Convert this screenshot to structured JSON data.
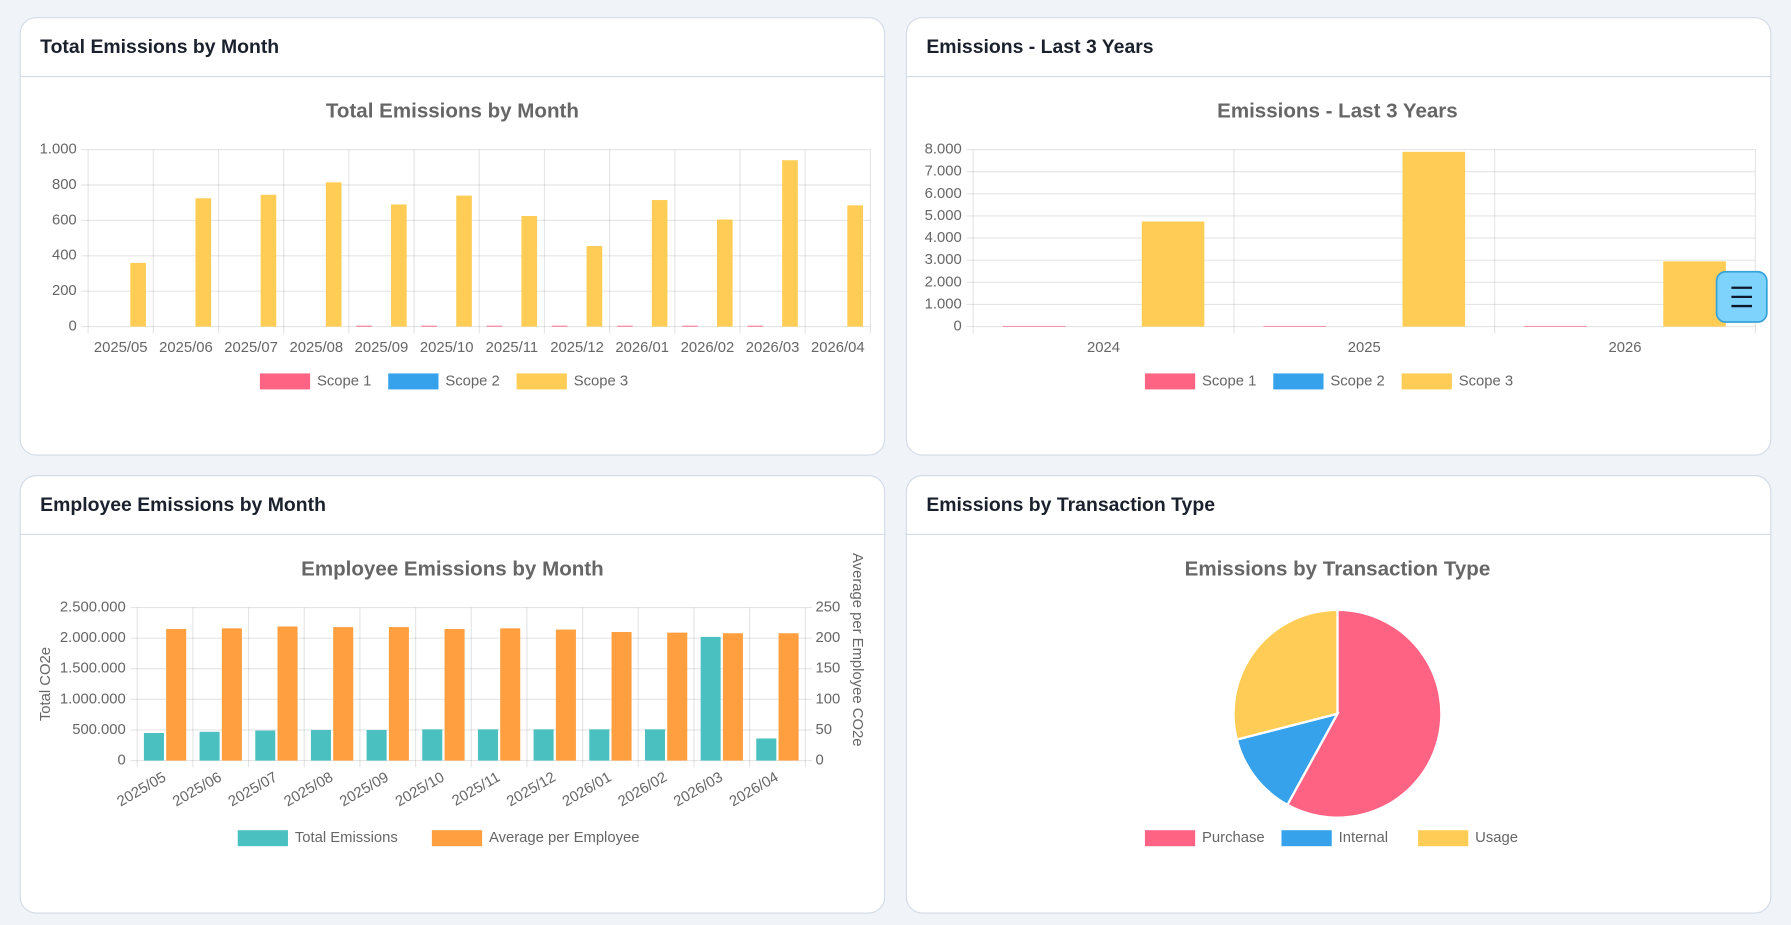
{
  "chart_data": [
    {
      "type": "bar",
      "title": "Total Emissions by Month",
      "categories": [
        "2025/05",
        "2025/06",
        "2025/07",
        "2025/08",
        "2025/09",
        "2025/10",
        "2025/11",
        "2025/12",
        "2026/01",
        "2026/02",
        "2026/03",
        "2026/04"
      ],
      "series": [
        {
          "name": "Scope 1",
          "color": "#ff6384",
          "values": [
            0,
            0,
            0,
            0,
            5,
            5,
            5,
            5,
            5,
            5,
            5,
            0
          ]
        },
        {
          "name": "Scope 2",
          "color": "#36a2eb",
          "values": [
            0,
            0,
            0,
            0,
            0,
            0,
            0,
            0,
            0,
            0,
            0,
            0
          ]
        },
        {
          "name": "Scope 3",
          "color": "#ffcd56",
          "values": [
            360,
            725,
            745,
            815,
            690,
            740,
            625,
            455,
            715,
            605,
            940,
            685
          ]
        }
      ],
      "ylim": [
        0,
        1000
      ],
      "yticks": [
        0,
        200,
        400,
        600,
        800,
        {
          "value": 1000,
          "label": "1.000"
        }
      ],
      "grid": true,
      "legend": "bottom"
    },
    {
      "type": "bar",
      "title": "Emissions - Last 3 Years",
      "categories": [
        "2024",
        "2025",
        "2026"
      ],
      "series": [
        {
          "name": "Scope 1",
          "color": "#ff6384",
          "values": [
            30,
            30,
            30
          ]
        },
        {
          "name": "Scope 2",
          "color": "#36a2eb",
          "values": [
            0,
            0,
            0
          ]
        },
        {
          "name": "Scope 3",
          "color": "#ffcd56",
          "values": [
            4750,
            7900,
            2950
          ]
        }
      ],
      "ylim": [
        0,
        8000
      ],
      "yticks": [
        0,
        {
          "value": 1000,
          "label": "1.000"
        },
        {
          "value": 2000,
          "label": "2.000"
        },
        {
          "value": 3000,
          "label": "3.000"
        },
        {
          "value": 4000,
          "label": "4.000"
        },
        {
          "value": 5000,
          "label": "5.000"
        },
        {
          "value": 6000,
          "label": "6.000"
        },
        {
          "value": 7000,
          "label": "7.000"
        },
        {
          "value": 8000,
          "label": "8.000"
        }
      ],
      "grid": true,
      "legend": "bottom"
    },
    {
      "type": "bar",
      "title": "Employee Emissions by Month",
      "categories": [
        "2025/05",
        "2025/06",
        "2025/07",
        "2025/08",
        "2025/09",
        "2025/10",
        "2025/11",
        "2025/12",
        "2026/01",
        "2026/02",
        "2026/03",
        "2026/04"
      ],
      "series": [
        {
          "name": "Total Emissions",
          "color": "#4bc0c0",
          "values": [
            450000,
            470000,
            490000,
            500000,
            500000,
            510000,
            510000,
            510000,
            510000,
            510000,
            2020000,
            360000
          ]
        },
        {
          "name": "Average per Employee",
          "color": "#ff9f40",
          "axis": "y2",
          "values": [
            215,
            216,
            219,
            218,
            218,
            215,
            216,
            214,
            210,
            209,
            208,
            208
          ]
        }
      ],
      "ylabel": "Total CO2e",
      "y2label": "Average per Employee CO2e",
      "ylim": [
        0,
        2500000
      ],
      "yticks": [
        0,
        {
          "value": 500000,
          "label": "500.000"
        },
        {
          "value": 1000000,
          "label": "1.000.000"
        },
        {
          "value": 1500000,
          "label": "1.500.000"
        },
        {
          "value": 2000000,
          "label": "2.000.000"
        },
        {
          "value": 2500000,
          "label": "2.500.000"
        }
      ],
      "y2lim": [
        0,
        250
      ],
      "y2ticks": [
        0,
        50,
        100,
        150,
        200,
        250
      ],
      "grid": true,
      "legend": "bottom",
      "rotate_xlabels": true
    },
    {
      "type": "pie",
      "title": "Emissions by Transaction Type",
      "categories": [
        "Purchase",
        "Internal",
        "Usage"
      ],
      "values": [
        58,
        13,
        29
      ],
      "colors": [
        "#ff6384",
        "#36a2eb",
        "#ffcd56"
      ],
      "legend": "bottom"
    }
  ]
}
